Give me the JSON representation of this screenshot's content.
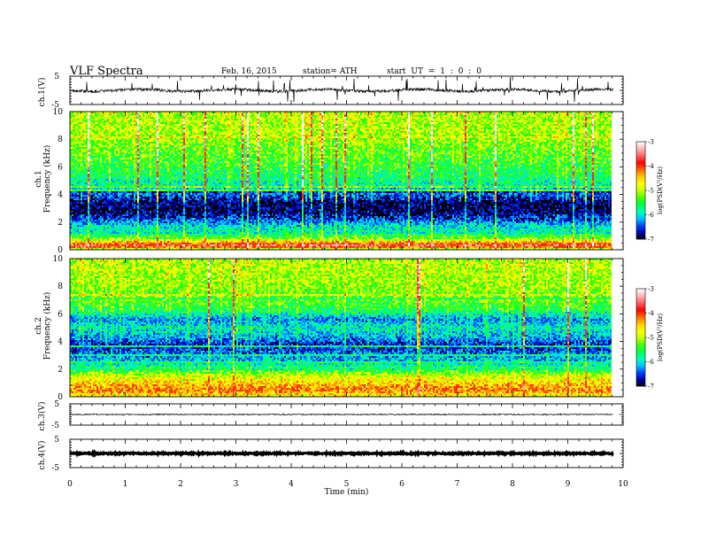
{
  "header": {
    "title": "VLF  Spectra",
    "date": "Feb. 16, 2015",
    "station": "station= ATH",
    "start": "start  UT =   1 : 0 : 0"
  },
  "chart_data": [
    {
      "type": "line",
      "name": "ch1-waveform",
      "ylabel": "ch.1(V)",
      "ylim": [
        -5,
        5
      ],
      "yticks": [
        "5",
        "-5"
      ],
      "xlim": [
        0,
        10
      ],
      "data_end_min": 9.8,
      "baseline": 0,
      "color": "#000000"
    },
    {
      "type": "heatmap",
      "name": "ch1-spectrogram",
      "ylabel": [
        "ch.1",
        "Frequency  (kHz)"
      ],
      "ylim": [
        0,
        10
      ],
      "yticks": [
        "0",
        "2",
        "4",
        "6",
        "8",
        "10"
      ],
      "xlim": [
        0,
        10
      ],
      "data_end_min": 9.8,
      "profile_log_psd": [
        {
          "f": 0.0,
          "v": -5.2
        },
        {
          "f": 0.3,
          "v": -3.6
        },
        {
          "f": 0.6,
          "v": -4.6
        },
        {
          "f": 0.9,
          "v": -5.4
        },
        {
          "f": 1.3,
          "v": -5.8
        },
        {
          "f": 1.7,
          "v": -6.0
        },
        {
          "f": 2.2,
          "v": -6.5
        },
        {
          "f": 2.8,
          "v": -6.9
        },
        {
          "f": 3.4,
          "v": -6.9
        },
        {
          "f": 4.0,
          "v": -6.4
        },
        {
          "f": 4.6,
          "v": -5.9
        },
        {
          "f": 5.5,
          "v": -5.6
        },
        {
          "f": 7.0,
          "v": -5.3
        },
        {
          "f": 8.5,
          "v": -5.1
        },
        {
          "f": 10.0,
          "v": -5.0
        }
      ]
    },
    {
      "type": "heatmap",
      "name": "ch2-spectrogram",
      "ylabel": [
        "ch.2",
        "Frequency  (kHz)"
      ],
      "ylim": [
        0,
        10
      ],
      "yticks": [
        "0",
        "2",
        "4",
        "6",
        "8",
        "10"
      ],
      "xlim": [
        0,
        10
      ],
      "data_end_min": 9.8,
      "profile_log_psd": [
        {
          "f": 0.0,
          "v": -4.8
        },
        {
          "f": 0.5,
          "v": -4.2
        },
        {
          "f": 1.0,
          "v": -4.6
        },
        {
          "f": 1.5,
          "v": -4.9
        },
        {
          "f": 2.0,
          "v": -5.6
        },
        {
          "f": 2.6,
          "v": -6.1
        },
        {
          "f": 3.2,
          "v": -6.4
        },
        {
          "f": 3.7,
          "v": -6.7
        },
        {
          "f": 4.3,
          "v": -6.2
        },
        {
          "f": 5.0,
          "v": -5.9
        },
        {
          "f": 5.6,
          "v": -6.3
        },
        {
          "f": 6.2,
          "v": -5.6
        },
        {
          "f": 7.0,
          "v": -5.3
        },
        {
          "f": 8.5,
          "v": -5.1
        },
        {
          "f": 10.0,
          "v": -5.0
        }
      ]
    },
    {
      "type": "line",
      "name": "ch3-waveform",
      "ylabel": "ch.3(V)",
      "ylim": [
        -5,
        5
      ],
      "yticks": [
        "5",
        "-5"
      ],
      "xlim": [
        0,
        10
      ],
      "data_end_min": 9.8,
      "baseline": 0,
      "color": "#000000"
    },
    {
      "type": "line",
      "name": "ch4-waveform",
      "ylabel": "ch.4(V)",
      "ylim": [
        -5,
        5
      ],
      "yticks": [
        "5",
        "-5"
      ],
      "xlim": [
        0,
        10
      ],
      "data_end_min": 9.8,
      "baseline": 0,
      "color": "#000000"
    }
  ],
  "x_axis": {
    "label": "Time  (min)",
    "ticks": [
      "0",
      "1",
      "2",
      "3",
      "4",
      "5",
      "6",
      "7",
      "8",
      "9",
      "10"
    ]
  },
  "colorbar": {
    "label": "log(PSD(V²/Hz)",
    "range": [
      -7,
      -3
    ],
    "ticks": [
      "-3",
      "-4",
      "-5",
      "-6",
      "-7"
    ],
    "stops": [
      "#000000",
      "#0000b4",
      "#0046ff",
      "#00c8ff",
      "#00ffb4",
      "#00ff46",
      "#46ff00",
      "#c8ff00",
      "#ffff00",
      "#ffc800",
      "#ff6400",
      "#ff0000",
      "#ff6464",
      "#ffb4b4",
      "#ffffff"
    ]
  }
}
